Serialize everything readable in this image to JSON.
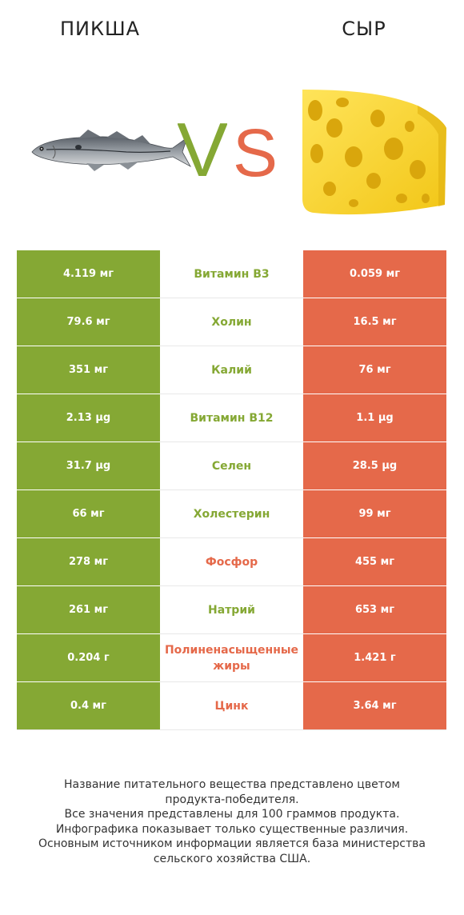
{
  "header": {
    "left_title": "ПИКША",
    "right_title": "СЫР",
    "vs_v": "V",
    "vs_s": "S"
  },
  "colors": {
    "winner_left": "#85a834",
    "winner_right": "#e5694a",
    "divider": "#e8e8e8"
  },
  "images": {
    "left": "haddock-fish-image",
    "right": "swiss-cheese-image"
  },
  "rows": [
    {
      "left": "4.119 мг",
      "nutrient": "Витамин B3",
      "right": "0.059 мг",
      "winner": "left"
    },
    {
      "left": "79.6 мг",
      "nutrient": "Холин",
      "right": "16.5 мг",
      "winner": "left"
    },
    {
      "left": "351 мг",
      "nutrient": "Калий",
      "right": "76 мг",
      "winner": "left"
    },
    {
      "left": "2.13 µg",
      "nutrient": "Витамин B12",
      "right": "1.1 µg",
      "winner": "left"
    },
    {
      "left": "31.7 µg",
      "nutrient": "Селен",
      "right": "28.5 µg",
      "winner": "left"
    },
    {
      "left": "66 мг",
      "nutrient": "Холестерин",
      "right": "99 мг",
      "winner": "left"
    },
    {
      "left": "278 мг",
      "nutrient": "Фосфор",
      "right": "455 мг",
      "winner": "right"
    },
    {
      "left": "261 мг",
      "nutrient": "Натрий",
      "right": "653 мг",
      "winner": "left"
    },
    {
      "left": "0.204 г",
      "nutrient": "Полиненасыщенные жиры",
      "right": "1.421 г",
      "winner": "right"
    },
    {
      "left": "0.4 мг",
      "nutrient": "Цинк",
      "right": "3.64 мг",
      "winner": "right"
    }
  ],
  "footer": {
    "line1": "Название питательного вещества представлено цветом",
    "line2": "продукта-победителя.",
    "line3": "Все значения представлены для 100 граммов продукта.",
    "line4": "Инфографика показывает только существенные различия.",
    "line5": "Основным источником информации является база министерства",
    "line6": "сельского хозяйства США."
  }
}
